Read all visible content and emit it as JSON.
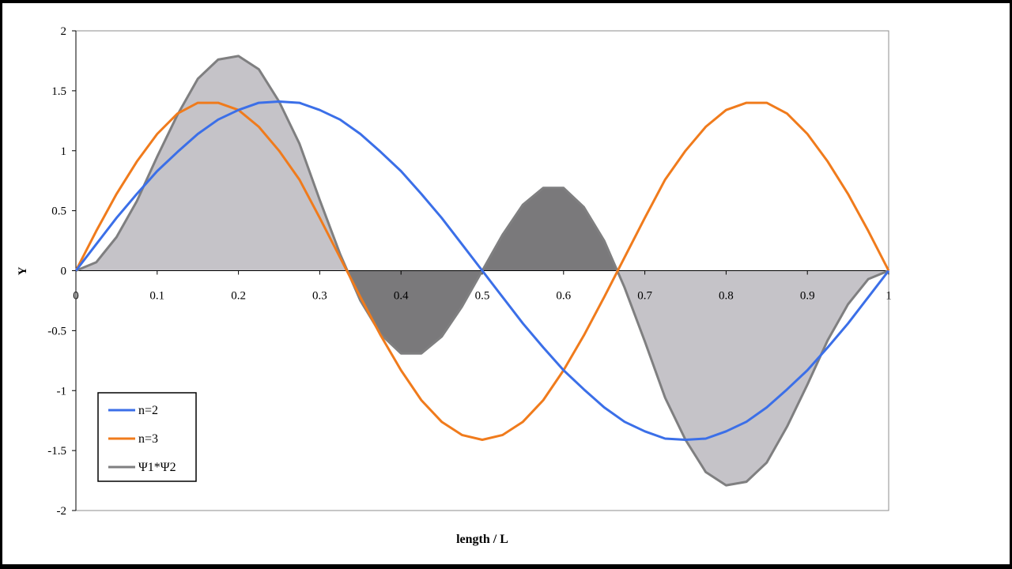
{
  "chart_data": {
    "type": "area",
    "xlabel": "length / L",
    "ylabel": "Y",
    "xlim": [
      0,
      1
    ],
    "ylim": [
      -2,
      2
    ],
    "x_ticks": [
      0,
      0.1,
      0.2,
      0.3,
      0.4,
      0.5,
      0.6,
      0.7,
      0.8,
      0.9,
      1
    ],
    "y_ticks": [
      -2,
      -1.5,
      -1,
      -0.5,
      0,
      0.5,
      1,
      1.5,
      2
    ],
    "x_tick_labels": [
      "0",
      "0.1",
      "0.2",
      "0.3",
      "0.4",
      "0.5",
      "0.6",
      "0.7",
      "0.8",
      "0.9",
      "1"
    ],
    "y_tick_labels": [
      "-2",
      "-1.5",
      "-1",
      "-0.5",
      "0",
      "0.5",
      "1",
      "1.5",
      "2"
    ],
    "grid": false,
    "legend_position": "bottom-left",
    "x": [
      0,
      0.025,
      0.05,
      0.075,
      0.1,
      0.125,
      0.15,
      0.175,
      0.2,
      0.225,
      0.25,
      0.275,
      0.3,
      0.325,
      0.35,
      0.375,
      0.4,
      0.425,
      0.45,
      0.475,
      0.5,
      0.525,
      0.55,
      0.575,
      0.6,
      0.625,
      0.65,
      0.675,
      0.7,
      0.725,
      0.75,
      0.775,
      0.8,
      0.825,
      0.85,
      0.875,
      0.9,
      0.925,
      0.95,
      0.975,
      1
    ],
    "series": [
      {
        "name": "n=2",
        "color": "#3b6fe8",
        "values": [
          0,
          0.22,
          0.44,
          0.64,
          0.83,
          0.99,
          1.14,
          1.26,
          1.34,
          1.4,
          1.41,
          1.4,
          1.34,
          1.26,
          1.14,
          0.99,
          0.83,
          0.64,
          0.44,
          0.22,
          0,
          -0.22,
          -0.44,
          -0.64,
          -0.83,
          -0.99,
          -1.14,
          -1.26,
          -1.34,
          -1.4,
          -1.41,
          -1.4,
          -1.34,
          -1.26,
          -1.14,
          -0.99,
          -0.83,
          -0.64,
          -0.44,
          -0.22,
          0
        ]
      },
      {
        "name": "n=3",
        "color": "#f07b1c",
        "values": [
          0,
          0.33,
          0.64,
          0.91,
          1.14,
          1.31,
          1.4,
          1.4,
          1.34,
          1.2,
          1.0,
          0.76,
          0.44,
          0.11,
          -0.22,
          -0.54,
          -0.83,
          -1.08,
          -1.26,
          -1.37,
          -1.41,
          -1.37,
          -1.26,
          -1.08,
          -0.83,
          -0.54,
          -0.22,
          0.11,
          0.44,
          0.76,
          1.0,
          1.2,
          1.34,
          1.4,
          1.4,
          1.31,
          1.14,
          0.91,
          0.64,
          0.33,
          0
        ]
      },
      {
        "name": "Ψ1*Ψ2",
        "color": "#7f7f80",
        "values": [
          0,
          0.07,
          0.28,
          0.58,
          0.95,
          1.3,
          1.6,
          1.76,
          1.79,
          1.68,
          1.41,
          1.06,
          0.59,
          0.14,
          -0.25,
          -0.53,
          -0.69,
          -0.69,
          -0.55,
          -0.3,
          0,
          0.3,
          0.55,
          0.69,
          0.69,
          0.53,
          0.25,
          -0.14,
          -0.59,
          -1.06,
          -1.41,
          -1.68,
          -1.79,
          -1.76,
          -1.6,
          -1.3,
          -0.95,
          -0.58,
          -0.28,
          -0.07,
          0
        ]
      }
    ],
    "shading": {
      "light_fill": "#c5c3c8",
      "dark_fill": "#7a797b",
      "light_ranges": [
        [
          0,
          0.3333
        ],
        [
          0.6667,
          1
        ]
      ],
      "dark_ranges": [
        [
          0.3333,
          0.6667
        ]
      ]
    }
  }
}
